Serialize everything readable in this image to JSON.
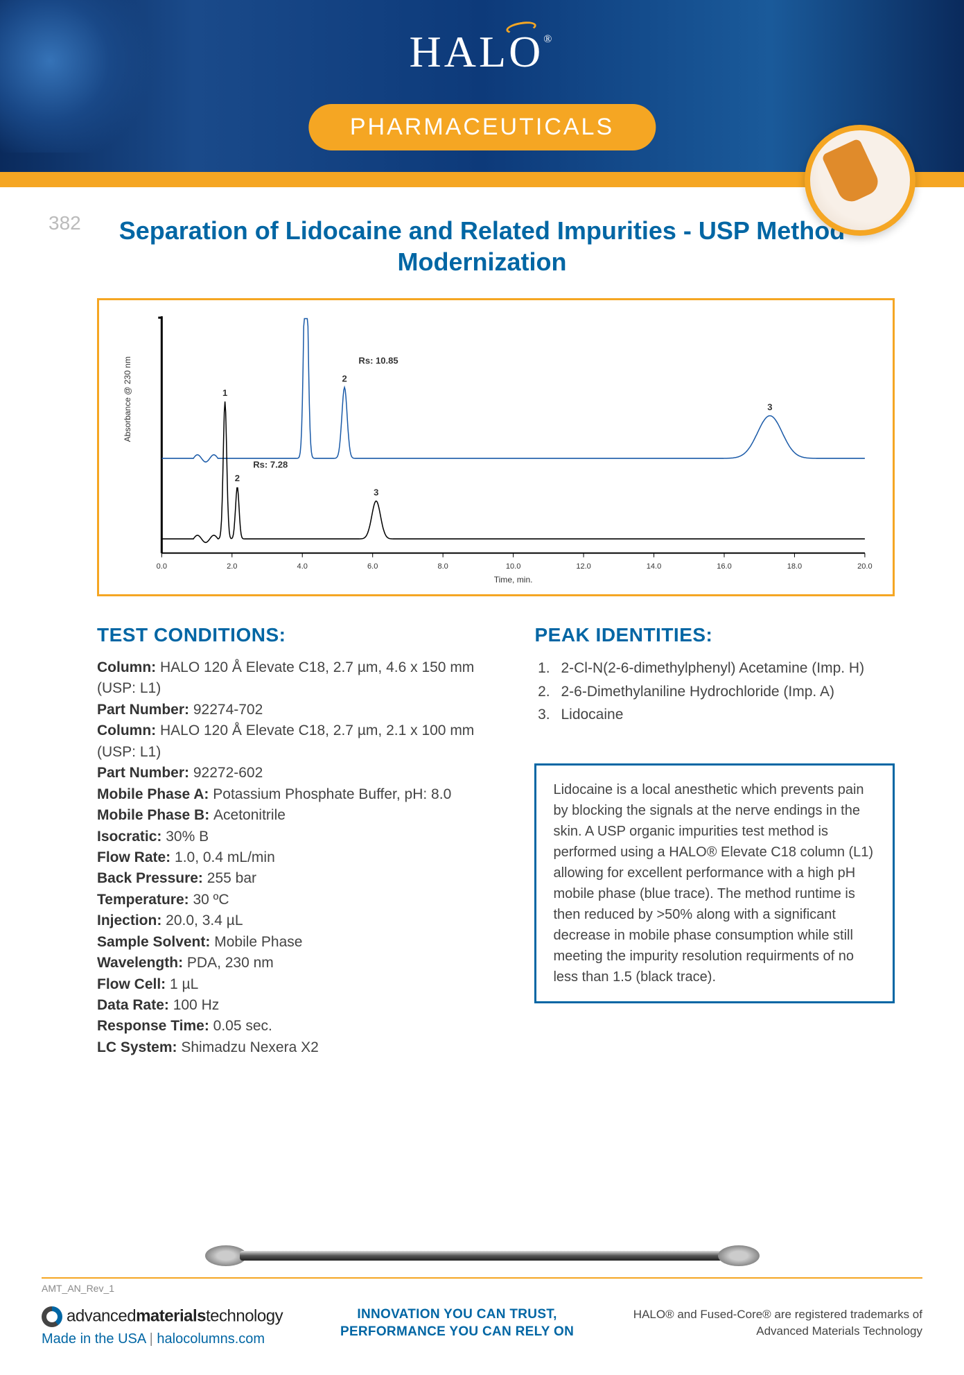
{
  "header": {
    "logo_text": "HALO",
    "logo_reg": "®",
    "pill_label": "PHARMACEUTICALS"
  },
  "title": "Separation of Lidocaine and Related Impurities - USP Method  Modernization",
  "doc_number": "382",
  "chart": {
    "type": "line",
    "xlabel": "Time, min.",
    "ylabel": "Absorbance @ 230 nm",
    "xlim": [
      0,
      20
    ],
    "xticks": [
      0.0,
      2.0,
      4.0,
      6.0,
      8.0,
      10.0,
      12.0,
      14.0,
      16.0,
      18.0,
      20.0
    ],
    "xtick_labels": [
      "0.0",
      "2.0",
      "4.0",
      "6.0",
      "8.0",
      "10.0",
      "12.0",
      "14.0",
      "16.0",
      "18.0",
      "20.0"
    ],
    "label_fontsize": 12,
    "tick_fontsize": 11,
    "background_color": "#ffffff",
    "axis_color": "#000000",
    "traces": [
      {
        "name": "blue",
        "color": "#1a5aa8",
        "linewidth": 1.5,
        "baseline_y": 0.4,
        "peaks": [
          {
            "label": "1",
            "x": 4.1,
            "height": 0.92,
            "width": 0.12
          },
          {
            "label": "2",
            "x": 5.2,
            "height": 0.3,
            "width": 0.15
          },
          {
            "label": "3",
            "x": 17.3,
            "height": 0.18,
            "width": 0.7
          }
        ],
        "annotation": {
          "text": "Rs: 10.85",
          "x": 5.6,
          "y": 0.8
        }
      },
      {
        "name": "black",
        "color": "#000000",
        "linewidth": 1.5,
        "baseline_y": 0.06,
        "peaks": [
          {
            "label": "1",
            "x": 1.8,
            "height": 0.58,
            "width": 0.1
          },
          {
            "label": "2",
            "x": 2.15,
            "height": 0.22,
            "width": 0.1
          },
          {
            "label": "3",
            "x": 6.1,
            "height": 0.16,
            "width": 0.25
          }
        ],
        "annotation": {
          "text": "Rs: 7.28",
          "x": 2.6,
          "y": 0.36
        }
      }
    ]
  },
  "test_conditions": {
    "heading": "TEST CONDITIONS:",
    "rows": [
      {
        "label": "Column:",
        "value": "HALO 120 Å Elevate C18, 2.7 µm, 4.6 x 150 mm (USP: L1)"
      },
      {
        "label": "Part Number:",
        "value": "92274-702"
      },
      {
        "label": "Column:",
        "value": "HALO 120 Å Elevate C18, 2.7 µm, 2.1 x 100 mm (USP: L1)"
      },
      {
        "label": "Part Number:",
        "value": "92272-602"
      },
      {
        "label": "Mobile Phase A:",
        "value": "Potassium Phosphate Buffer, pH: 8.0"
      },
      {
        "label": "Mobile Phase B:",
        "value": "Acetonitrile"
      },
      {
        "label": "Isocratic:",
        "value": "30% B"
      },
      {
        "label": "Flow Rate:",
        "value": "1.0, 0.4 mL/min"
      },
      {
        "label": "Back Pressure:",
        "value": "255 bar"
      },
      {
        "label": "Temperature:",
        "value": "30 ºC"
      },
      {
        "label": "Injection:",
        "value": " 20.0, 3.4 µL"
      },
      {
        "label": "Sample Solvent:",
        "value": " Mobile Phase"
      },
      {
        "label": "Wavelength:",
        "value": "PDA, 230 nm"
      },
      {
        "label": "Flow Cell:",
        "value": "1 µL"
      },
      {
        "label": "Data Rate:",
        "value": "100 Hz"
      },
      {
        "label": "Response Time:",
        "value": "0.05 sec."
      },
      {
        "label": "LC System:",
        "value": "Shimadzu Nexera X2"
      }
    ]
  },
  "peak_identities": {
    "heading": "PEAK IDENTITIES:",
    "items": [
      "2-Cl-N(2-6-dimethylphenyl) Acetamine (Imp. H)",
      "2-6-Dimethylaniline Hydrochloride (Imp. A)",
      "Lidocaine"
    ]
  },
  "description": "Lidocaine is a local anesthetic which prevents pain by blocking the signals at the nerve endings in the skin. A USP organic impurities test method is performed using a HALO® Elevate C18 column (L1) allowing for excellent performance with a high pH mobile phase (blue trace). The method runtime is then reduced by >50% along with a significant decrease in mobile phase consumption while still meeting the impurity resolution requirments of no less than 1.5 (black trace).",
  "footer": {
    "revision": "AMT_AN_Rev_1",
    "amt_logo_prefix": "advanced",
    "amt_logo_bold": "materials",
    "amt_logo_suffix": "technology",
    "made_in": "Made in the USA",
    "website": "halocolumns.com",
    "tagline_1": "INNOVATION YOU CAN TRUST,",
    "tagline_2": "PERFORMANCE YOU CAN RELY ON",
    "trademark": "HALO® and Fused-Core® are registered trademarks of Advanced Materials Technology"
  }
}
